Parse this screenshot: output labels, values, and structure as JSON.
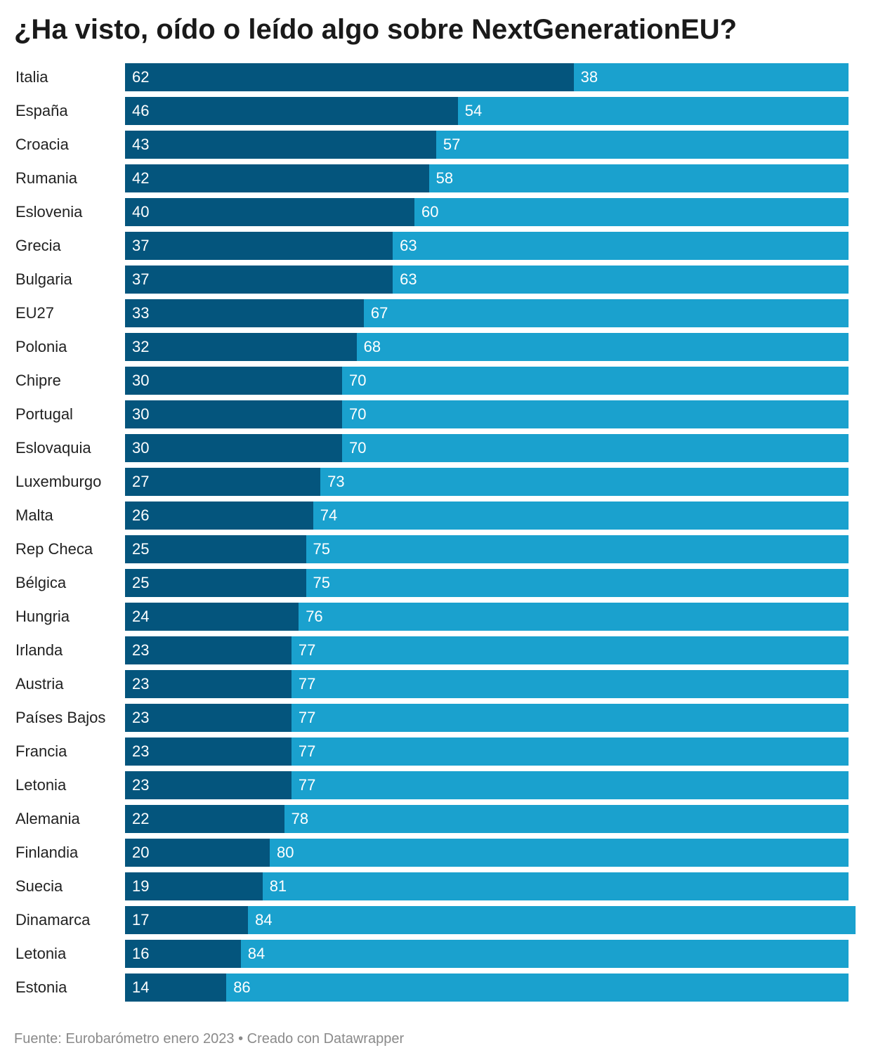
{
  "chart_data": {
    "type": "bar",
    "orientation": "horizontal",
    "stacked": true,
    "title": "¿Ha visto, oído o leído algo sobre NextGenerationEU?",
    "source": "Fuente: Eurobarómetro enero 2023 • Creado con Datawrapper",
    "xlim": [
      0,
      100
    ],
    "grid": false,
    "legend": "none",
    "categories": [
      "Italia",
      "España",
      "Croacia",
      "Rumania",
      "Eslovenia",
      "Grecia",
      "Bulgaria",
      "EU27",
      "Polonia",
      "Chipre",
      "Portugal",
      "Eslovaquia",
      "Luxemburgo",
      "Malta",
      "Rep Checa",
      "Bélgica",
      "Hungria",
      "Irlanda",
      "Austria",
      "Países Bajos",
      "Francia",
      "Letonia",
      "Alemania",
      "Finlandia",
      "Suecia",
      "Dinamarca",
      "Letonia",
      "Estonia"
    ],
    "series": [
      {
        "color": "#04557d",
        "values": [
          62,
          46,
          43,
          42,
          40,
          37,
          37,
          33,
          32,
          30,
          30,
          30,
          27,
          26,
          25,
          25,
          24,
          23,
          23,
          23,
          23,
          23,
          22,
          20,
          19,
          17,
          16,
          14
        ]
      },
      {
        "color": "#1aa1ce",
        "values": [
          38,
          54,
          57,
          58,
          60,
          63,
          63,
          67,
          68,
          70,
          70,
          70,
          73,
          74,
          75,
          75,
          76,
          77,
          77,
          77,
          77,
          77,
          78,
          80,
          81,
          84,
          84,
          86
        ]
      }
    ]
  }
}
